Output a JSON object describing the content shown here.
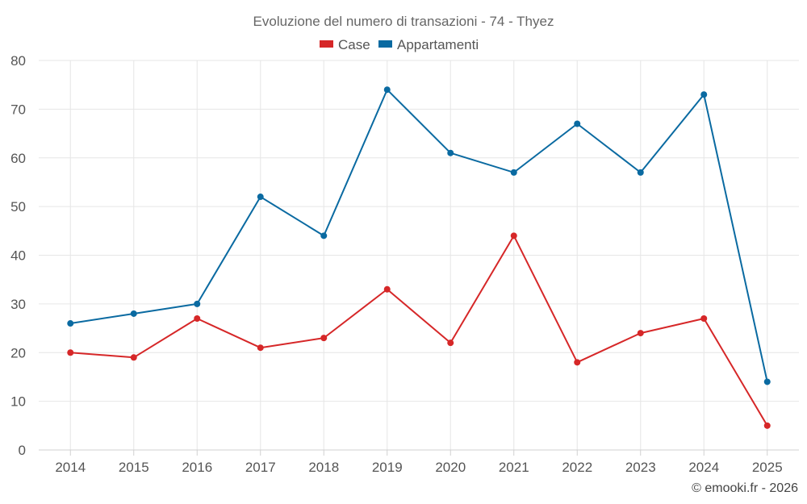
{
  "chart_data": {
    "type": "line",
    "title": "Evoluzione del numero di transazioni - 74 - Thyez",
    "categories": [
      "2014",
      "2015",
      "2016",
      "2017",
      "2018",
      "2019",
      "2020",
      "2021",
      "2022",
      "2023",
      "2024",
      "2025"
    ],
    "series": [
      {
        "name": "Case",
        "color": "#d62728",
        "values": [
          20,
          19,
          27,
          21,
          23,
          33,
          22,
          44,
          18,
          24,
          27,
          5
        ]
      },
      {
        "name": "Appartamenti",
        "color": "#0a6aa1",
        "values": [
          26,
          28,
          30,
          52,
          44,
          74,
          61,
          57,
          67,
          57,
          73,
          14
        ]
      }
    ],
    "ylim": [
      0,
      80
    ],
    "yticks": [
      0,
      10,
      20,
      30,
      40,
      50,
      60,
      70,
      80
    ],
    "legend_position": "top-center",
    "grid": true
  },
  "credit": "© emooki.fr - 2026"
}
